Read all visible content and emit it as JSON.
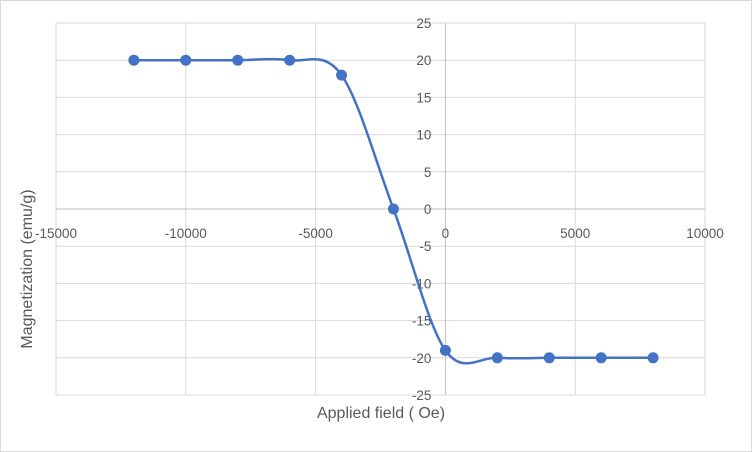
{
  "chart_data": {
    "type": "scatter",
    "title": "",
    "xlabel": "Applied field ( Oe)",
    "ylabel": "Magnetization (emu/g)",
    "xlim": [
      -15000,
      10000
    ],
    "ylim": [
      -25,
      25
    ],
    "x_ticks": [
      -15000,
      -10000,
      -5000,
      0,
      5000,
      10000
    ],
    "y_ticks": [
      25,
      20,
      15,
      10,
      5,
      0,
      -5,
      -10,
      -15,
      -20,
      -25
    ],
    "grid": true,
    "smooth_line": true,
    "series": [
      {
        "color": "#4472c4",
        "points": [
          {
            "x": -12000,
            "y": 20
          },
          {
            "x": -10000,
            "y": 20
          },
          {
            "x": -8000,
            "y": 20
          },
          {
            "x": -6000,
            "y": 20
          },
          {
            "x": -4000,
            "y": 18
          },
          {
            "x": -2000,
            "y": 0
          },
          {
            "x": 0,
            "y": -19
          },
          {
            "x": 2000,
            "y": -20
          },
          {
            "x": 4000,
            "y": -20
          },
          {
            "x": 6000,
            "y": -20
          },
          {
            "x": 8000,
            "y": -20
          }
        ]
      }
    ]
  }
}
